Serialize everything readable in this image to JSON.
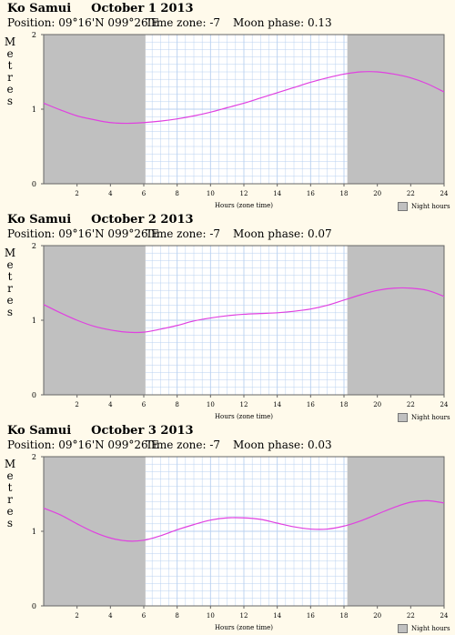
{
  "colors": {
    "background": "#fffaeb",
    "night": "#c0c0c0",
    "grid": "#b8d0f0",
    "curve": "#e040e0"
  },
  "legend_label": "Night hours",
  "chart_data": [
    {
      "type": "line",
      "location": "Ko Samui",
      "date": "October 1 2013",
      "position": "Position: 09°16'N 099°26'E",
      "timezone": "Time zone: -7",
      "moon": "Moon phase: 0.13",
      "xlabel": "Hours (zone time)",
      "ylabel": "Metres",
      "xlim": [
        0,
        24
      ],
      "ylim": [
        0,
        2
      ],
      "xticks": [
        2,
        4,
        6,
        8,
        10,
        12,
        14,
        16,
        18,
        20,
        22,
        24
      ],
      "yticks": [
        0,
        1,
        2
      ],
      "night": [
        [
          0,
          6.1
        ],
        [
          18.2,
          24
        ]
      ],
      "x": [
        0,
        1,
        2,
        3,
        4,
        5,
        6,
        7,
        8,
        9,
        10,
        11,
        12,
        13,
        14,
        15,
        16,
        17,
        18,
        19,
        20,
        21,
        22,
        23,
        24
      ],
      "y": [
        1.08,
        0.99,
        0.91,
        0.86,
        0.82,
        0.81,
        0.82,
        0.84,
        0.87,
        0.91,
        0.96,
        1.02,
        1.08,
        1.15,
        1.22,
        1.29,
        1.36,
        1.42,
        1.47,
        1.5,
        1.5,
        1.47,
        1.42,
        1.34,
        1.23
      ]
    },
    {
      "type": "line",
      "location": "Ko Samui",
      "date": "October 2 2013",
      "position": "Position: 09°16'N 099°26'E",
      "timezone": "Time zone: -7",
      "moon": "Moon phase: 0.07",
      "xlabel": "Hours (zone time)",
      "ylabel": "Metres",
      "xlim": [
        0,
        24
      ],
      "ylim": [
        0,
        2
      ],
      "xticks": [
        2,
        4,
        6,
        8,
        10,
        12,
        14,
        16,
        18,
        20,
        22,
        24
      ],
      "yticks": [
        0,
        1,
        2
      ],
      "night": [
        [
          0,
          6.1
        ],
        [
          18.2,
          24
        ]
      ],
      "x": [
        0,
        1,
        2,
        3,
        4,
        5,
        6,
        7,
        8,
        9,
        10,
        11,
        12,
        13,
        14,
        15,
        16,
        17,
        18,
        19,
        20,
        21,
        22,
        23,
        24
      ],
      "y": [
        1.21,
        1.1,
        1.0,
        0.92,
        0.87,
        0.84,
        0.84,
        0.88,
        0.93,
        0.99,
        1.03,
        1.06,
        1.08,
        1.09,
        1.1,
        1.12,
        1.15,
        1.2,
        1.27,
        1.34,
        1.4,
        1.43,
        1.43,
        1.4,
        1.32
      ]
    },
    {
      "type": "line",
      "location": "Ko Samui",
      "date": "October 3 2013",
      "position": "Position: 09°16'N 099°26'E",
      "timezone": "Time zone: -7",
      "moon": "Moon phase: 0.03",
      "xlabel": "Hours (zone time)",
      "ylabel": "Metres",
      "xlim": [
        0,
        24
      ],
      "ylim": [
        0,
        2
      ],
      "xticks": [
        2,
        4,
        6,
        8,
        10,
        12,
        14,
        16,
        18,
        20,
        22,
        24
      ],
      "yticks": [
        0,
        1,
        2
      ],
      "night": [
        [
          0,
          6.1
        ],
        [
          18.2,
          24
        ]
      ],
      "x": [
        0,
        1,
        2,
        3,
        4,
        5,
        6,
        7,
        8,
        9,
        10,
        11,
        12,
        13,
        14,
        15,
        16,
        17,
        18,
        19,
        20,
        21,
        22,
        23,
        24
      ],
      "y": [
        1.31,
        1.22,
        1.1,
        0.99,
        0.91,
        0.87,
        0.88,
        0.94,
        1.02,
        1.09,
        1.15,
        1.18,
        1.18,
        1.16,
        1.11,
        1.06,
        1.03,
        1.03,
        1.07,
        1.14,
        1.23,
        1.32,
        1.39,
        1.41,
        1.38
      ]
    }
  ]
}
